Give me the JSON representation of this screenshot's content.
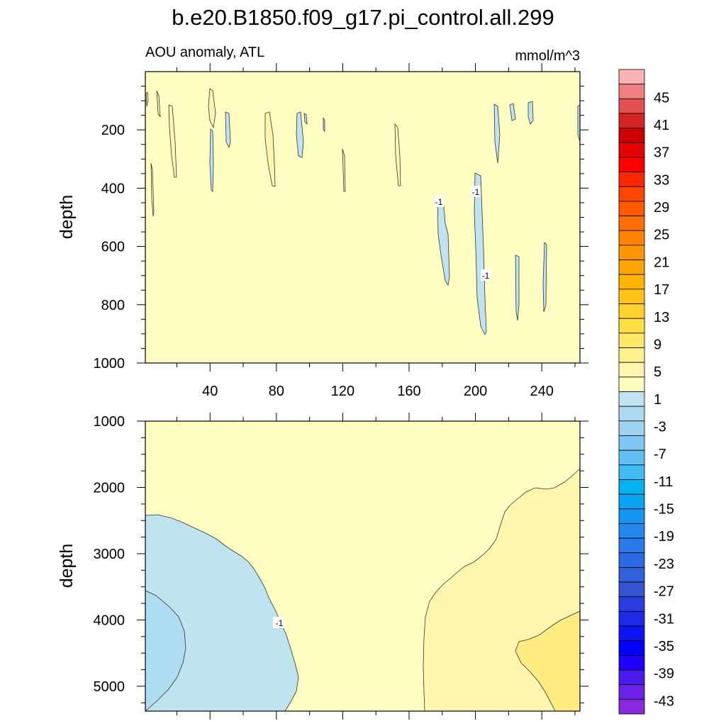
{
  "chart_data": {
    "type": "contour",
    "title": "b.e20.B1850.f09_g17.pi_control.all.299",
    "subtitle_left": "AOU anomaly, ATL",
    "subtitle_right": "mmol/m^3",
    "x_ticks": [
      "40",
      "80",
      "120",
      "160",
      "200",
      "240"
    ],
    "x_tick_values": [
      40,
      80,
      120,
      160,
      200,
      240
    ],
    "xlim": [
      1,
      263
    ],
    "panels": [
      {
        "name": "upper",
        "ylabel": "depth",
        "ylim": [
          0,
          1000
        ],
        "y_ticks": [
          "200",
          "400",
          "600",
          "800",
          "1000"
        ],
        "y_tick_values": [
          200,
          400,
          600,
          800,
          1000
        ],
        "contour_labels": [
          "-1",
          "-1",
          "-1"
        ]
      },
      {
        "name": "lower",
        "ylabel": "depth",
        "ylim": [
          1000,
          5375
        ],
        "y_ticks": [
          "1000",
          "2000",
          "3000",
          "4000",
          "5000"
        ],
        "y_tick_values": [
          1000,
          2000,
          3000,
          4000,
          5000
        ],
        "contour_labels": [
          "-1"
        ]
      }
    ],
    "colorbar": {
      "labels": [
        "45",
        "41",
        "37",
        "33",
        "29",
        "25",
        "21",
        "17",
        "13",
        "9",
        "5",
        "1",
        "-3",
        "-7",
        "-11",
        "-15",
        "-19",
        "-23",
        "-27",
        "-31",
        "-35",
        "-39",
        "-43"
      ],
      "colors": [
        "#fab3b3",
        "#ee8080",
        "#e45050",
        "#d42424",
        "#cc0000",
        "#e60000",
        "#ff0000",
        "#ff2600",
        "#ff4600",
        "#ff5a00",
        "#ff6e00",
        "#ff8200",
        "#ff9600",
        "#ffa400",
        "#ffb400",
        "#ffc41a",
        "#ffd22e",
        "#ffde46",
        "#ffe868",
        "#fff08e",
        "#fff5ae",
        "#ffffc4",
        "#bfe4f0",
        "#aed8ee",
        "#9ed2f0",
        "#80c8f2",
        "#60c0f2",
        "#40bbf4",
        "#00b2ee",
        "#0aa2f2",
        "#1496f2",
        "#2288f0",
        "#2a7aec",
        "#2c6ae4",
        "#3060da",
        "#3454d4",
        "#2a3ee0",
        "#1e2aea",
        "#0c14f6",
        "#0000ff",
        "#2000ff",
        "#4a1aef",
        "#6a22e8",
        "#8a28e0"
      ]
    }
  }
}
